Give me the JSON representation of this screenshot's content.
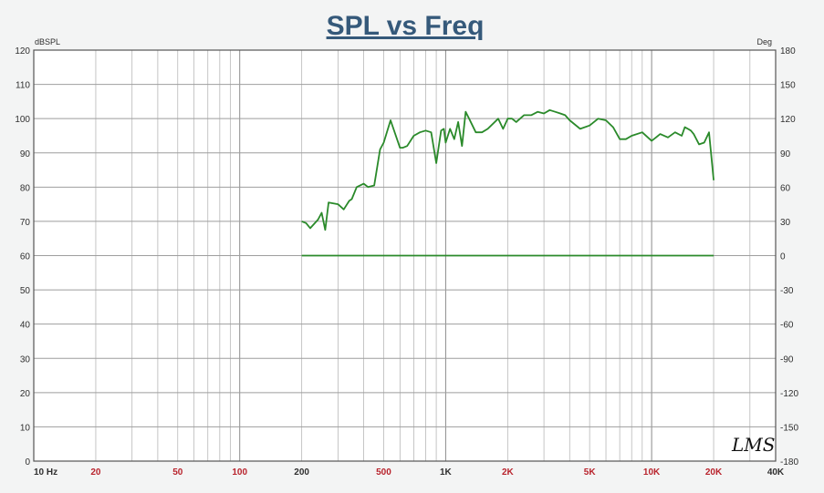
{
  "chart_data": {
    "type": "line",
    "title": "SPL vs Freq",
    "y_left_unit": "dBSPL",
    "y_right_unit": "Deg",
    "x_scale": "log",
    "xlim": [
      10,
      40000
    ],
    "ylim_left": [
      0,
      120
    ],
    "ylim_right": [
      -180,
      180
    ],
    "y_left_ticks": [
      0,
      10,
      20,
      30,
      40,
      50,
      60,
      70,
      80,
      90,
      100,
      110,
      120
    ],
    "y_right_ticks": [
      -180,
      -150,
      -120,
      -90,
      -60,
      -30,
      0,
      30,
      60,
      90,
      120,
      150,
      180
    ],
    "x_ticks": [
      {
        "value": 10,
        "label": "10  Hz"
      },
      {
        "value": 20,
        "label": "20"
      },
      {
        "value": 50,
        "label": "50"
      },
      {
        "value": 100,
        "label": "100"
      },
      {
        "value": 200,
        "label": "200"
      },
      {
        "value": 500,
        "label": "500"
      },
      {
        "value": 1000,
        "label": "1K"
      },
      {
        "value": 2000,
        "label": "2K"
      },
      {
        "value": 5000,
        "label": "5K"
      },
      {
        "value": 10000,
        "label": "10K"
      },
      {
        "value": 20000,
        "label": "20K"
      },
      {
        "value": 40000,
        "label": "40K"
      }
    ],
    "grid": true,
    "colors": {
      "line": "#2a8a2a",
      "grid": "#a9a9a9",
      "frame": "#555555",
      "x_tick_red": "#b8232c",
      "x_tick_dark": "#2f2f2f"
    },
    "series": [
      {
        "axis": "left",
        "x": [
          200,
          210,
          220,
          240,
          250,
          260,
          270,
          300,
          320,
          340,
          350,
          370,
          400,
          420,
          450,
          480,
          500,
          540,
          600,
          620,
          650,
          700,
          750,
          800,
          850,
          900,
          950,
          980,
          1000,
          1050,
          1100,
          1150,
          1200,
          1250,
          1300,
          1400,
          1500,
          1600,
          1800,
          1900,
          2000,
          2100,
          2200,
          2400,
          2600,
          2800,
          3000,
          3200,
          3400,
          3600,
          3800,
          4000,
          4500,
          5000,
          5500,
          6000,
          6500,
          7000,
          7500,
          8000,
          9000,
          10000,
          10500,
          11000,
          12000,
          13000,
          14000,
          14500,
          15000,
          15500,
          16000,
          17000,
          18000,
          19000,
          20000
        ],
        "y": [
          70,
          69.5,
          68,
          70.5,
          72.5,
          67.5,
          75.5,
          75,
          73.5,
          76,
          76.5,
          80,
          81,
          80,
          80.5,
          91,
          93,
          99.5,
          91.5,
          91.5,
          92,
          95,
          96,
          96.5,
          96,
          87,
          96.5,
          97,
          93,
          97,
          94,
          99,
          92,
          102,
          100,
          96,
          96,
          97,
          100,
          97,
          100,
          100,
          99,
          101,
          101,
          102,
          101.5,
          102.5,
          102,
          101.5,
          101,
          99.5,
          97,
          98,
          100,
          99.5,
          97.5,
          94,
          94,
          95,
          96,
          93.5,
          94.5,
          95.5,
          94.5,
          96,
          95,
          97.5,
          97,
          96.5,
          95.5,
          92.5,
          93,
          96,
          82
        ]
      },
      {
        "axis": "left",
        "x": [
          200,
          20000
        ],
        "y": [
          60,
          60
        ]
      }
    ]
  }
}
